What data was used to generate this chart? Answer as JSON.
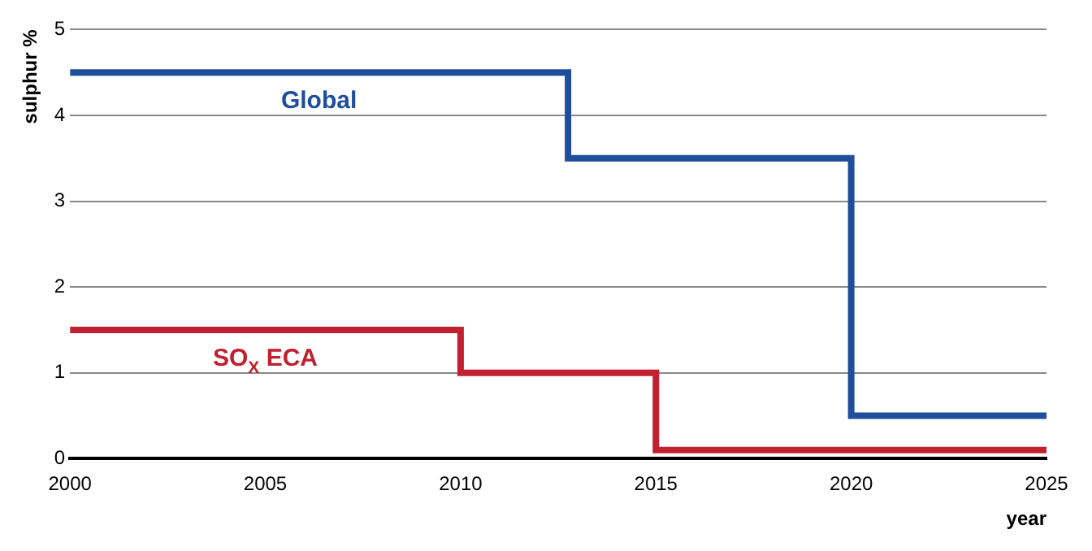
{
  "chart_data": {
    "type": "step",
    "xlabel": "year",
    "ylabel": "sulphur %",
    "xlim": [
      2000,
      2025
    ],
    "xticks": [
      2000,
      2005,
      2010,
      2015,
      2020,
      2025
    ],
    "ylim": [
      0,
      5
    ],
    "yticks": [
      0,
      1,
      2,
      3,
      4,
      5
    ],
    "grid": "y",
    "legend": false,
    "series": [
      {
        "name": "Global",
        "color": "#1f4e9c",
        "x": [
          2000,
          2012.75,
          2020,
          2025
        ],
        "values": [
          4.5,
          3.5,
          0.5,
          0.5
        ]
      },
      {
        "name": "SO$_{X}$ ECA",
        "color": "#c0202f",
        "x": [
          2000,
          2010,
          2015,
          2025
        ],
        "values": [
          1.5,
          1.0,
          0.1,
          0.1
        ]
      }
    ]
  }
}
